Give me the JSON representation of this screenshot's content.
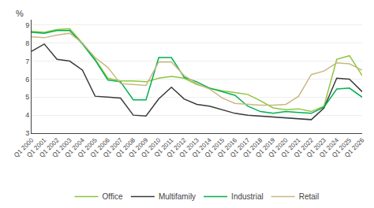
{
  "chart_data": {
    "type": "line",
    "ylabel": "%",
    "categories": [
      "Q1 2000",
      "Q1 2001",
      "Q1 2002",
      "Q1 2003",
      "Q1 2004",
      "Q1 2005",
      "Q1 2006",
      "Q1 2007",
      "Q1 2008",
      "Q1 2009",
      "Q1 2010",
      "Q1 2011",
      "Q1 2012",
      "Q1 2013",
      "Q1 2014",
      "Q1 2015",
      "Q1 2016",
      "Q1 2017",
      "Q1 2018",
      "Q1 2019",
      "Q1 2020",
      "Q1 2021",
      "Q1 2022",
      "Q1 2023",
      "Q1 2024",
      "Q1 2025",
      "Q1 2026"
    ],
    "series": [
      {
        "name": "Office",
        "color": "#8dc63f",
        "values": [
          8.65,
          8.6,
          8.75,
          8.8,
          8.0,
          7.1,
          6.05,
          5.9,
          5.9,
          5.85,
          6.05,
          6.15,
          6.05,
          5.7,
          5.5,
          5.35,
          5.25,
          5.15,
          4.8,
          4.4,
          4.3,
          4.35,
          4.2,
          4.5,
          7.1,
          7.3,
          6.2
        ]
      },
      {
        "name": "Multifamily",
        "color": "#3b3b3b",
        "values": [
          7.55,
          7.95,
          7.1,
          7.0,
          6.5,
          5.05,
          5.0,
          4.95,
          4.0,
          3.95,
          4.9,
          5.55,
          4.9,
          4.6,
          4.5,
          4.3,
          4.1,
          4.0,
          3.95,
          3.9,
          3.85,
          3.8,
          3.75,
          4.4,
          6.05,
          6.0,
          5.3
        ]
      },
      {
        "name": "Industrial",
        "color": "#00b050",
        "values": [
          8.6,
          8.55,
          8.7,
          8.7,
          7.95,
          7.05,
          5.95,
          5.85,
          4.85,
          4.85,
          7.2,
          7.2,
          6.1,
          5.85,
          5.5,
          5.3,
          5.1,
          4.5,
          4.2,
          4.1,
          4.2,
          4.15,
          4.1,
          4.45,
          5.45,
          5.5,
          5.0
        ]
      },
      {
        "name": "Retail",
        "color": "#c8b882",
        "values": [
          8.35,
          8.3,
          8.45,
          8.55,
          8.0,
          7.2,
          6.65,
          5.75,
          5.7,
          5.65,
          6.95,
          6.95,
          6.2,
          5.75,
          5.45,
          4.95,
          4.65,
          4.6,
          4.55,
          4.55,
          4.6,
          5.05,
          6.25,
          6.45,
          6.9,
          6.85,
          6.5
        ]
      }
    ],
    "ylim": [
      3,
      9.3
    ],
    "yticks": [
      3,
      4,
      5,
      6,
      7,
      8,
      9
    ],
    "grid": true,
    "legend": "bottom"
  }
}
